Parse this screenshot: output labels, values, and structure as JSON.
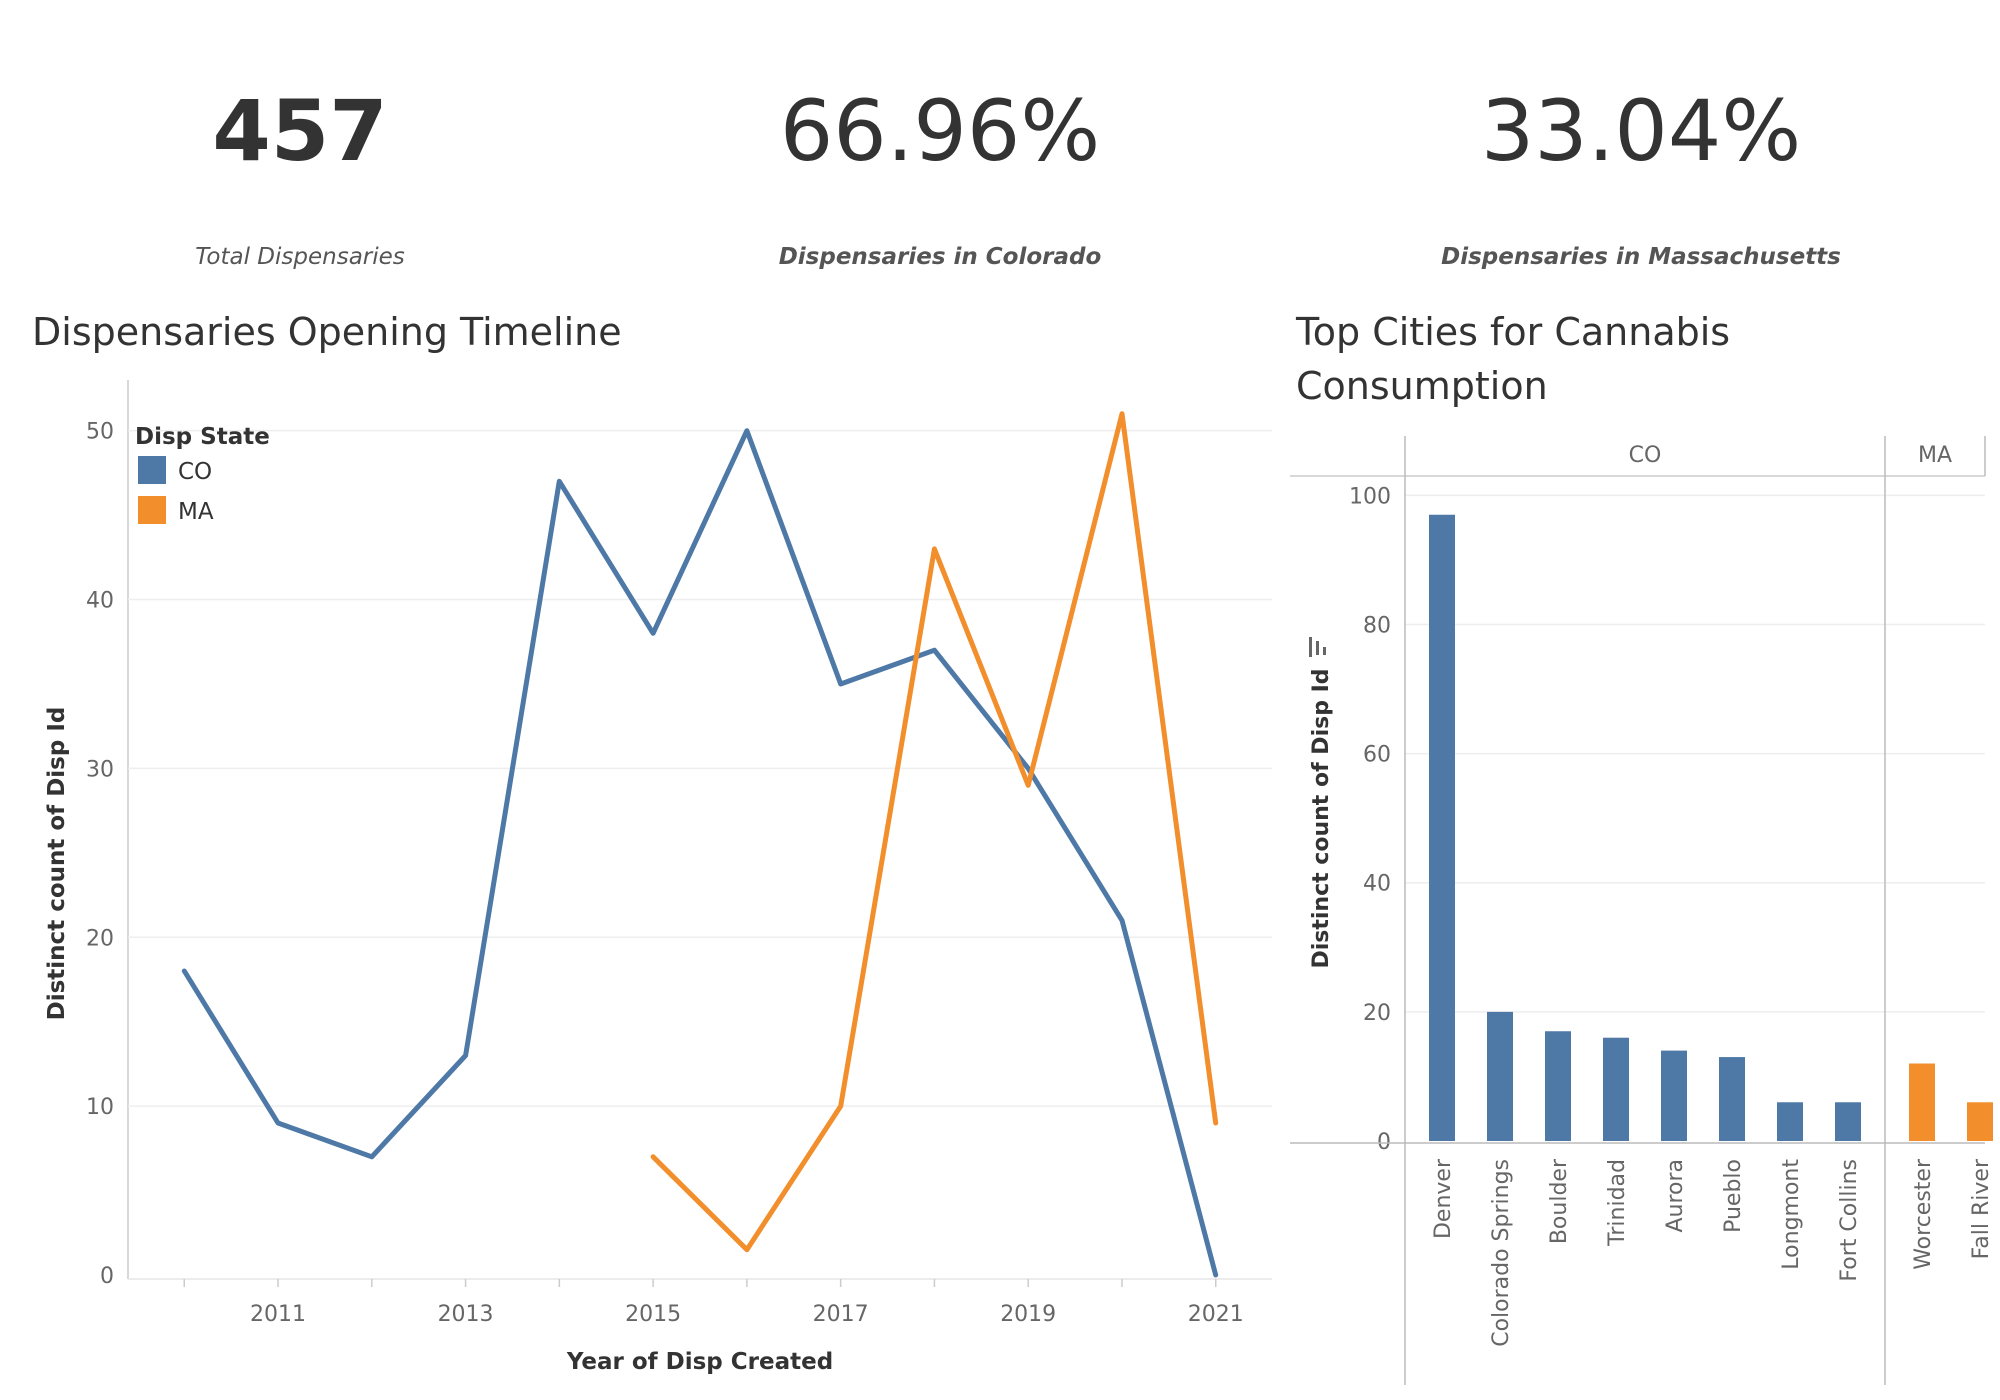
{
  "kpis": [
    {
      "value": "457",
      "label": "Total Dispensaries"
    },
    {
      "value": "66.96%",
      "label": "Dispensaries in Colorado"
    },
    {
      "value": "33.04%",
      "label": "Dispensaries in Massachusetts"
    }
  ],
  "colors": {
    "CO": "#4e79a7",
    "MA": "#f28e2b",
    "grid": "#eeeeee",
    "axis": "#cccccc"
  },
  "chart_data": [
    {
      "type": "line",
      "title": "Dispensaries Opening Timeline",
      "xlabel": "Year of Disp Created",
      "ylabel": "Distinct count of Disp Id",
      "x": [
        2010,
        2011,
        2012,
        2013,
        2014,
        2015,
        2016,
        2017,
        2018,
        2019,
        2020,
        2021
      ],
      "xticks": [
        2011,
        2013,
        2015,
        2017,
        2019,
        2021
      ],
      "yticks": [
        0,
        10,
        20,
        30,
        40,
        50
      ],
      "xlim": [
        2009.4,
        2021.6
      ],
      "ylim": [
        0,
        53
      ],
      "grid": true,
      "legend": {
        "title": "Disp State",
        "placement": "top-left"
      },
      "series": [
        {
          "name": "CO",
          "values": [
            18,
            9,
            7,
            13,
            47,
            38,
            50,
            35,
            37,
            30,
            21,
            0
          ]
        },
        {
          "name": "MA",
          "values": [
            null,
            null,
            null,
            null,
            null,
            7,
            1.5,
            10,
            43,
            29,
            51,
            9
          ]
        }
      ]
    },
    {
      "type": "bar",
      "title": "Top Cities for Cannabis Consumption",
      "ylabel": "Distinct count of Disp Id",
      "yticks": [
        0,
        20,
        40,
        60,
        80,
        100
      ],
      "ylim": [
        0,
        103
      ],
      "grid": true,
      "panels": [
        {
          "name": "CO",
          "categories": [
            "Denver",
            "Colorado Springs",
            "Boulder",
            "Trinidad",
            "Aurora",
            "Pueblo",
            "Longmont",
            "Fort Collins"
          ],
          "values": [
            97,
            20,
            17,
            16,
            14,
            13,
            6,
            6
          ]
        },
        {
          "name": "MA",
          "categories": [
            "Worcester",
            "Fall River"
          ],
          "values": [
            12,
            6
          ]
        }
      ]
    }
  ]
}
